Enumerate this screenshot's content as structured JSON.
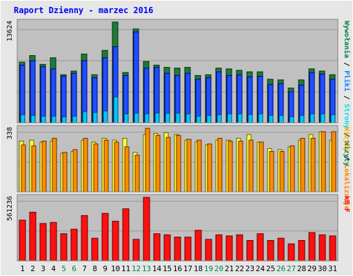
{
  "colors": {
    "background": "#e6e6e6",
    "panel": "#c0c0c0",
    "title": "#0000ff",
    "frame": "#ffffff",
    "weekend_day": "#008040",
    "weekday_day": "#000000",
    "visits": "#1f7a3a",
    "visits_outline": "#003000",
    "pages": "#1f4fff",
    "pages_outline": "#00007a",
    "files": "#00c8ff",
    "files_outline": "#004878",
    "hits": "#ffff40",
    "hits_outline": "#606000",
    "sites": "#ff8c00",
    "sites_outline": "#603000",
    "kb": "#ff1010",
    "kb_outline": "#600000"
  },
  "chart_data": {
    "type": "bar",
    "title": "Raport Dzienny -  marzec 2016",
    "categories": [
      "1",
      "2",
      "3",
      "4",
      "5",
      "6",
      "7",
      "8",
      "9",
      "10",
      "11",
      "12",
      "13",
      "14",
      "15",
      "16",
      "17",
      "18",
      "19",
      "20",
      "21",
      "22",
      "23",
      "24",
      "25",
      "26",
      "27",
      "28",
      "29",
      "30",
      "31"
    ],
    "weekend_days": [
      "5",
      "6",
      "12",
      "13",
      "19",
      "20",
      "26",
      "27"
    ],
    "panels": [
      {
        "name": "top",
        "ymax_label": "13624",
        "ymax": 13624,
        "right_label_parts": [
          {
            "text": "Wywołania",
            "color": "#008040"
          },
          {
            "text": " / ",
            "color": "#000000"
          },
          {
            "text": "Pliki",
            "color": "#0080ff"
          },
          {
            "text": " / ",
            "color": "#000000"
          },
          {
            "text": "Strony",
            "color": "#00e0e0"
          },
          {
            "text": " / ",
            "color": "#000000"
          },
          {
            "text": "Wizyty",
            "color": "#008040"
          }
        ],
        "series": [
          {
            "name": "Wywołania",
            "role": "visits",
            "values": [
              8200,
              9100,
              7900,
              8800,
              6500,
              7000,
              9300,
              6500,
              9800,
              13624,
              6800,
              12700,
              8300,
              7800,
              7500,
              7400,
              7500,
              6400,
              6500,
              7400,
              7300,
              7100,
              6900,
              6900,
              5900,
              5800,
              4700,
              5800,
              7300,
              7000,
              6500
            ]
          },
          {
            "name": "Pliki",
            "role": "pages",
            "values": [
              7800,
              8400,
              7600,
              7300,
              6300,
              6700,
              8400,
              6100,
              8800,
              10300,
              6400,
              12300,
              7400,
              7500,
              6700,
              6400,
              6700,
              5900,
              6100,
              6900,
              6400,
              6500,
              6200,
              6300,
              5200,
              5300,
              4200,
              5100,
              6800,
              6600,
              5900
            ]
          },
          {
            "name": "Strony",
            "role": "files",
            "values": [
              1100,
              1000,
              900,
              900,
              800,
              900,
              1500,
              1400,
              1600,
              3500,
              1200,
              1300,
              1200,
              1300,
              1300,
              1300,
              1200,
              900,
              1000,
              1100,
              1200,
              1200,
              1100,
              1200,
              1000,
              1000,
              800,
              1000,
              1200,
              1200,
              1100
            ]
          }
        ]
      },
      {
        "name": "middle",
        "ymax_label": "338",
        "ymax": 338,
        "right_label_parts": [
          {
            "text": "Wizyty",
            "color": "#ffa000"
          },
          {
            "text": " / ",
            "color": "#000000"
          },
          {
            "text": "Lokalizacje",
            "color": "#ff8000"
          }
        ],
        "series": [
          {
            "name": "Wizyty",
            "role": "hits",
            "values": [
              270,
              275,
              265,
              270,
              205,
              215,
              275,
              265,
              285,
              275,
              285,
              210,
              305,
              310,
              315,
              305,
              275,
              265,
              250,
              275,
              275,
              285,
              305,
              265,
              230,
              225,
              240,
              275,
              305,
              320,
              275
            ]
          },
          {
            "name": "Lokalizacje",
            "role": "sites",
            "values": [
              250,
              245,
              270,
              285,
              210,
              225,
              285,
              255,
              275,
              265,
              240,
              195,
              338,
              300,
              290,
              300,
              280,
              275,
              255,
              285,
              270,
              270,
              275,
              265,
              215,
              215,
              245,
              285,
              285,
              320,
              320
            ]
          }
        ]
      },
      {
        "name": "bottom",
        "ymax_label": "561236",
        "ymax": 561236,
        "right_label_parts": [
          {
            "text": "kB F",
            "color": "#ff0000"
          }
        ],
        "series": [
          {
            "name": "kB F",
            "role": "kb",
            "values": [
              360000,
              430000,
              330000,
              340000,
              240000,
              280000,
              400000,
              200000,
              420000,
              350000,
              460000,
              190000,
              561236,
              240000,
              230000,
              210000,
              210000,
              270000,
              190000,
              230000,
              220000,
              230000,
              180000,
              240000,
              180000,
              200000,
              150000,
              180000,
              250000,
              230000,
              220000
            ]
          }
        ]
      }
    ]
  }
}
